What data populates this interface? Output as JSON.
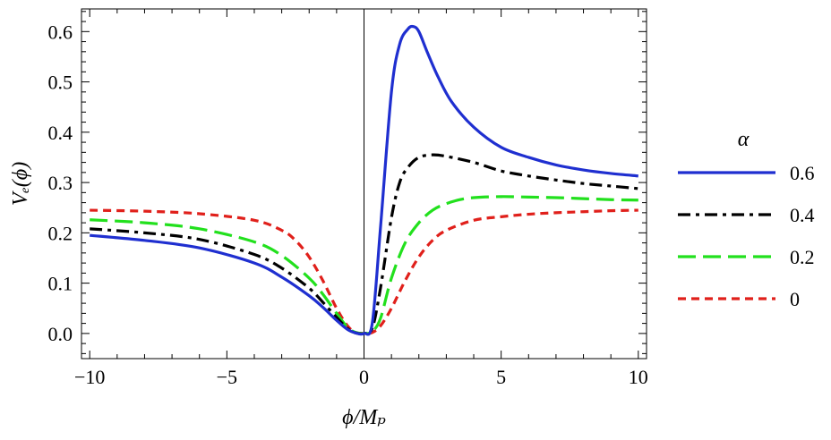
{
  "chart_data": {
    "type": "line",
    "title": "",
    "xlabel": "ϕ/Mₚ",
    "ylabel": "Vₑ(ϕ)",
    "xlim": [
      -10.3,
      10.3
    ],
    "ylim": [
      -0.05,
      0.645
    ],
    "x_ticks": [
      -10,
      -5,
      0,
      5,
      10
    ],
    "x_tick_labels": [
      "−10",
      "−5",
      "0",
      "5",
      "10"
    ],
    "y_ticks": [
      0.0,
      0.1,
      0.2,
      0.3,
      0.4,
      0.5,
      0.6
    ],
    "y_tick_labels": [
      "0.0",
      "0.1",
      "0.2",
      "0.3",
      "0.4",
      "0.5",
      "0.6"
    ],
    "grid": false,
    "legend_title": "α",
    "legend_position": "right",
    "series": [
      {
        "name": "0.6",
        "color": "#1f2fd0",
        "dash": "solid",
        "x": [
          -10,
          -8,
          -6,
          -4,
          -3,
          -2,
          -1.5,
          -1,
          -0.6,
          -0.3,
          0,
          0.3,
          0.6,
          1.0,
          1.3,
          1.6,
          1.8,
          2.0,
          2.3,
          2.7,
          3.2,
          4,
          5,
          6,
          7,
          8,
          9,
          10
        ],
        "y": [
          0.195,
          0.185,
          0.17,
          0.14,
          0.112,
          0.075,
          0.052,
          0.026,
          0.008,
          0.001,
          0.0,
          0.02,
          0.21,
          0.48,
          0.575,
          0.605,
          0.61,
          0.6,
          0.56,
          0.51,
          0.46,
          0.41,
          0.37,
          0.35,
          0.335,
          0.325,
          0.318,
          0.313
        ]
      },
      {
        "name": "0.4",
        "color": "#000000",
        "dash": "dashdot",
        "x": [
          -10,
          -8,
          -6,
          -4,
          -3,
          -2,
          -1.5,
          -1,
          -0.6,
          -0.3,
          0,
          0.3,
          0.6,
          1.0,
          1.3,
          1.6,
          2.0,
          2.5,
          3.0,
          4,
          5,
          6,
          7,
          8,
          9,
          10
        ],
        "y": [
          0.208,
          0.2,
          0.187,
          0.157,
          0.13,
          0.09,
          0.062,
          0.032,
          0.01,
          0.001,
          0.0,
          0.01,
          0.09,
          0.23,
          0.3,
          0.33,
          0.35,
          0.355,
          0.352,
          0.34,
          0.323,
          0.313,
          0.305,
          0.298,
          0.293,
          0.288
        ]
      },
      {
        "name": "0.2",
        "color": "#22e01d",
        "dash": "longdash",
        "x": [
          -10,
          -8,
          -6,
          -4,
          -3,
          -2,
          -1.5,
          -1,
          -0.6,
          -0.3,
          0,
          0.3,
          0.6,
          1.0,
          1.5,
          2.0,
          2.5,
          3.0,
          3.5,
          4,
          5,
          6,
          7,
          8,
          9,
          10
        ],
        "y": [
          0.226,
          0.22,
          0.208,
          0.182,
          0.155,
          0.11,
          0.078,
          0.04,
          0.012,
          0.002,
          0.0,
          0.004,
          0.03,
          0.11,
          0.18,
          0.22,
          0.245,
          0.258,
          0.266,
          0.27,
          0.272,
          0.271,
          0.27,
          0.268,
          0.266,
          0.265
        ]
      },
      {
        "name": "0",
        "color": "#e0201b",
        "dash": "shortdash",
        "x": [
          -10,
          -8,
          -6,
          -4,
          -3,
          -2.5,
          -2,
          -1.5,
          -1,
          -0.6,
          -0.3,
          0,
          0.3,
          0.6,
          1.0,
          1.5,
          2.0,
          2.5,
          3.0,
          4,
          5,
          6,
          7,
          8,
          9,
          10
        ],
        "y": [
          0.245,
          0.243,
          0.238,
          0.225,
          0.205,
          0.185,
          0.152,
          0.105,
          0.05,
          0.015,
          0.002,
          0.0,
          0.002,
          0.015,
          0.05,
          0.105,
          0.152,
          0.185,
          0.205,
          0.225,
          0.232,
          0.237,
          0.24,
          0.242,
          0.244,
          0.245
        ]
      }
    ]
  }
}
